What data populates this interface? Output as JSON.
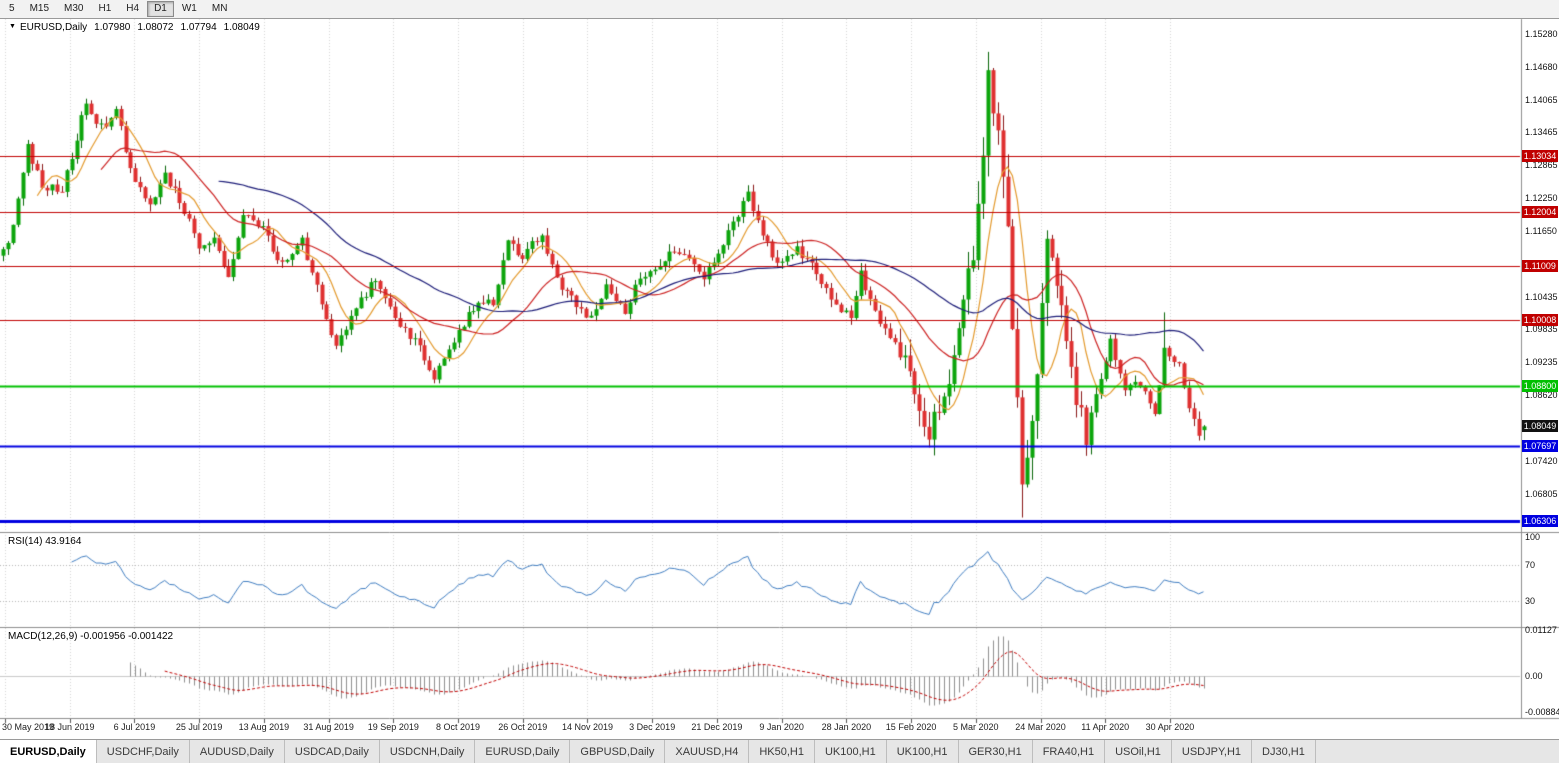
{
  "icons": {
    "dropdown": "▼"
  },
  "toolbar": {
    "timeframes": [
      "5",
      "M15",
      "M30",
      "H1",
      "H4",
      "D1",
      "W1",
      "MN"
    ],
    "active": "D1"
  },
  "chart_header": {
    "symbol": "EURUSD,Daily",
    "open": "1.07980",
    "high": "1.08072",
    "low": "1.07794",
    "close": "1.08049"
  },
  "price_axis": {
    "labels": [
      "1.15280",
      "1.14680",
      "1.14065",
      "1.13465",
      "1.12865",
      "1.12250",
      "1.11650",
      "1.10435",
      "1.09835",
      "1.09235",
      "1.08620",
      "1.07420",
      "1.06805"
    ]
  },
  "levels": [
    {
      "price": "1.13034",
      "value": 1.13034,
      "color": "#C00000",
      "line_width": 1.2
    },
    {
      "price": "1.12004",
      "value": 1.12004,
      "color": "#C00000",
      "line_width": 1.2
    },
    {
      "price": "1.11009",
      "value": 1.11009,
      "color": "#C00000",
      "line_width": 1.2
    },
    {
      "price": "1.10008",
      "value": 1.10008,
      "color": "#C00000",
      "line_width": 1.2
    },
    {
      "price": "1.08800",
      "value": 1.088,
      "color": "#00C000",
      "line_width": 2
    },
    {
      "price": "1.07697",
      "value": 1.07697,
      "color": "#0000E0",
      "line_width": 2
    },
    {
      "price": "1.06306",
      "value": 1.06306,
      "color": "#0000E0",
      "line_width": 3
    }
  ],
  "current_price": {
    "label": "1.08049",
    "value": 1.08049,
    "badge_bg": "#111111"
  },
  "rsi": {
    "label": "RSI(14) 43.9164",
    "value": "43.9164",
    "axis_labels": [
      "100",
      "70",
      "30"
    ],
    "levels": [
      70,
      30
    ],
    "line_color": "#3E7CC0"
  },
  "macd": {
    "label": "MACD(12,26,9) -0.001956 -0.001422",
    "axis_labels": [
      "0.01127",
      "0.00",
      "-0.00884"
    ],
    "histogram_color": "#8F8F8F",
    "signal_color": "#C00000"
  },
  "date_axis": {
    "labels": [
      "30 May 2019",
      "18 Jun 2019",
      "6 Jul 2019",
      "25 Jul 2019",
      "13 Aug 2019",
      "31 Aug 2019",
      "19 Sep 2019",
      "8 Oct 2019",
      "26 Oct 2019",
      "14 Nov 2019",
      "3 Dec 2019",
      "21 Dec 2019",
      "9 Jan 2020",
      "28 Jan 2020",
      "15 Feb 2020",
      "5 Mar 2020",
      "24 Mar 2020",
      "11 Apr 2020",
      "30 Apr 2020"
    ]
  },
  "tabs": {
    "active_index": 0,
    "items": [
      "EURUSD,Daily",
      "USDCHF,Daily",
      "AUDUSD,Daily",
      "USDCAD,Daily",
      "USDCNH,Daily",
      "EURUSD,Daily",
      "GBPUSD,Daily",
      "XAUUSD,H4",
      "HK50,H1",
      "UK100,H1",
      "UK100,H1",
      "GER30,H1",
      "FRA40,H1",
      "USOil,H1",
      "USDJPY,H1",
      "DJ30,H1"
    ],
    "note": ""
  },
  "colors": {
    "bull": "#0CA50C",
    "bull_border": "#076607",
    "bear": "#DF3030",
    "bear_border": "#8A1717",
    "grid": "#D4D4D4",
    "separator": "#8C8C8C",
    "axis_text": "#111111"
  },
  "chart_data": {
    "type": "candlestick",
    "symbol": "EURUSD",
    "timeframe": "Daily",
    "visible_price_range": {
      "min": 1.061,
      "max": 1.1556
    },
    "num_candles": 246,
    "price_path": [
      [
        0,
        1.113
      ],
      [
        2,
        1.117
      ],
      [
        5,
        1.132
      ],
      [
        8,
        1.125
      ],
      [
        12,
        1.1235
      ],
      [
        15,
        1.134
      ],
      [
        17,
        1.14
      ],
      [
        20,
        1.1355
      ],
      [
        23,
        1.1385
      ],
      [
        26,
        1.128
      ],
      [
        30,
        1.1215
      ],
      [
        33,
        1.127
      ],
      [
        37,
        1.1205
      ],
      [
        40,
        1.1135
      ],
      [
        43,
        1.1155
      ],
      [
        46,
        1.108
      ],
      [
        49,
        1.1195
      ],
      [
        53,
        1.117
      ],
      [
        57,
        1.11
      ],
      [
        61,
        1.1145
      ],
      [
        64,
        1.106
      ],
      [
        66,
        1.0995
      ],
      [
        68,
        1.0945
      ],
      [
        72,
        1.103
      ],
      [
        76,
        1.1075
      ],
      [
        80,
        1.1005
      ],
      [
        84,
        1.0965
      ],
      [
        88,
        1.09
      ],
      [
        91,
        1.0945
      ],
      [
        94,
        1.099
      ],
      [
        97,
        1.104
      ],
      [
        100,
        1.1035
      ],
      [
        103,
        1.1145
      ],
      [
        106,
        1.112
      ],
      [
        110,
        1.116
      ],
      [
        113,
        1.1075
      ],
      [
        117,
        1.1025
      ],
      [
        120,
        1.1
      ],
      [
        123,
        1.1065
      ],
      [
        127,
        1.1015
      ],
      [
        130,
        1.108
      ],
      [
        134,
        1.11
      ],
      [
        137,
        1.113
      ],
      [
        140,
        1.1115
      ],
      [
        143,
        1.108
      ],
      [
        146,
        1.112
      ],
      [
        150,
        1.12
      ],
      [
        152,
        1.123
      ],
      [
        155,
        1.1155
      ],
      [
        158,
        1.111
      ],
      [
        162,
        1.1135
      ],
      [
        166,
        1.109
      ],
      [
        170,
        1.1025
      ],
      [
        173,
        1.1005
      ],
      [
        175,
        1.1085
      ],
      [
        179,
        1.1
      ],
      [
        183,
        1.0945
      ],
      [
        186,
        1.0865
      ],
      [
        189,
        1.0795
      ],
      [
        192,
        1.085
      ],
      [
        195,
        1.099
      ],
      [
        198,
        1.113
      ],
      [
        200,
        1.128
      ],
      [
        201,
        1.145
      ],
      [
        203,
        1.133
      ],
      [
        205,
        1.118
      ],
      [
        206,
        1.1
      ],
      [
        208,
        1.068
      ],
      [
        210,
        1.079
      ],
      [
        213,
        1.113
      ],
      [
        216,
        1.103
      ],
      [
        219,
        1.085
      ],
      [
        221,
        1.079
      ],
      [
        224,
        1.089
      ],
      [
        226,
        1.096
      ],
      [
        229,
        1.087
      ],
      [
        232,
        1.0885
      ],
      [
        235,
        1.082
      ],
      [
        237,
        1.095
      ],
      [
        240,
        1.0915
      ],
      [
        242,
        1.084
      ],
      [
        244,
        1.0785
      ],
      [
        245,
        1.08049
      ]
    ],
    "volatility_window": {
      "start": 183,
      "end": 222,
      "factor": 2.2
    },
    "crash_window": {
      "start": 199,
      "end": 213,
      "factor": 3.1
    },
    "overrides": {
      "spike": {
        "index": 201,
        "high": 1.1495
      },
      "crash": {
        "index": 208,
        "low": 1.0637
      },
      "april_spike": {
        "index": 237,
        "high": 1.1015
      },
      "last_candle": {
        "open": 1.0798,
        "high": 1.08072,
        "low": 1.07794,
        "close": 1.08049
      }
    },
    "moving_averages": [
      {
        "period": 8,
        "color": "#E39A2E"
      },
      {
        "period": 21,
        "color": "#CC2222"
      },
      {
        "period": 45,
        "color": "#1C1C78"
      }
    ],
    "sr_levels": [
      1.13034,
      1.12004,
      1.11009,
      1.10008,
      1.088,
      1.07697,
      1.06306
    ],
    "indicators": [
      {
        "name": "RSI",
        "period": 14,
        "current": 43.9164
      },
      {
        "name": "MACD",
        "fast": 12,
        "slow": 26,
        "signal": 9,
        "current": [
          -0.001956,
          -0.001422
        ]
      }
    ]
  }
}
